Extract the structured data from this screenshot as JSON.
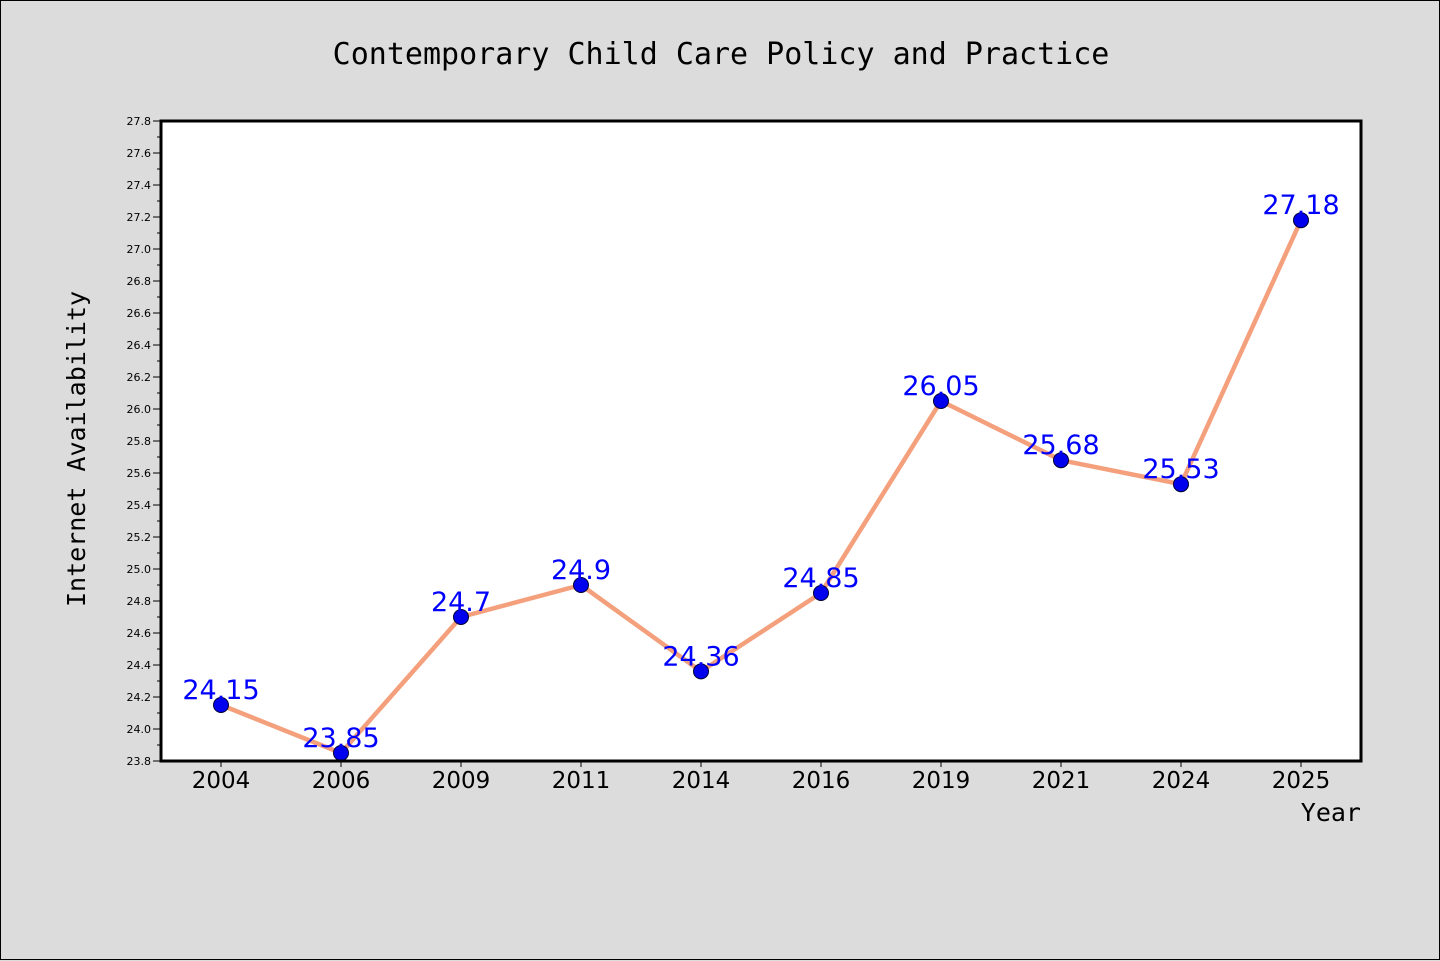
{
  "chart_data": {
    "type": "line",
    "title": "Contemporary Child Care Policy and Practice",
    "xlabel": "Year",
    "ylabel": "Internet Availability",
    "categories": [
      "2004",
      "2006",
      "2009",
      "2011",
      "2014",
      "2016",
      "2019",
      "2021",
      "2024",
      "2025"
    ],
    "series": [
      {
        "values": [
          24.15,
          23.85,
          24.7,
          24.9,
          24.36,
          24.85,
          26.05,
          25.68,
          25.53,
          27.18
        ]
      }
    ],
    "data_labels": [
      "24.15",
      "23.85",
      "24.7",
      "24.9",
      "24.36",
      "24.85",
      "26.05",
      "25.68",
      "25.53",
      "27.18"
    ],
    "ylim": [
      23.8,
      27.8
    ],
    "y_major_ticks": [
      "23.8",
      "24.0",
      "24.2",
      "24.4",
      "24.6",
      "24.8",
      "25.0",
      "25.2",
      "25.4",
      "25.6",
      "25.8",
      "26.0",
      "26.2",
      "26.4",
      "26.6",
      "26.8",
      "27.0",
      "27.2",
      "27.4",
      "27.6",
      "27.8"
    ],
    "y_minor_tick_step": 0.1,
    "grid": false,
    "colors": {
      "line": "#f4a07c",
      "marker_fill": "#0000ee",
      "marker_edge": "#000033",
      "data_label": "#0000ff",
      "plot_background": "#ffffff",
      "figure_background": "#dcdcdc"
    }
  }
}
